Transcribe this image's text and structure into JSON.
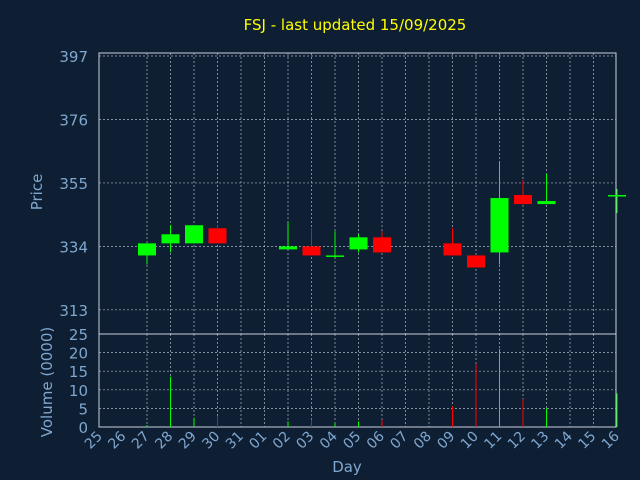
{
  "chart_data": [
    {
      "type": "candlestick",
      "title": "FSJ - last updated 15/09/2025",
      "ylabel": "Price",
      "ylim": [
        305,
        398
      ],
      "yticks": [
        313,
        334,
        355,
        376,
        397
      ],
      "grid": true,
      "days": [
        "25",
        "26",
        "27",
        "28",
        "29",
        "30",
        "31",
        "01",
        "02",
        "03",
        "04",
        "05",
        "06",
        "07",
        "08",
        "09",
        "10",
        "11",
        "12",
        "13",
        "14",
        "15",
        "16"
      ],
      "colors": {
        "up": "#00ff00",
        "down": "#ff0000",
        "title": "#ffff00",
        "axis_text": "#7fa7cf",
        "grid": "#aab4c4",
        "background": "#0f1f33"
      },
      "candles": [
        {
          "day": "26",
          "open": 331,
          "high": 335,
          "low": 328,
          "close": 335
        },
        {
          "day": "27",
          "open": 335,
          "high": 341,
          "low": 332,
          "close": 338
        },
        {
          "day": "28",
          "open": 335,
          "high": 341,
          "low": 335,
          "close": 341
        },
        {
          "day": "29",
          "open": 340,
          "high": 341,
          "low": 335,
          "close": 335
        },
        {
          "day": "01",
          "open": 333,
          "high": 342,
          "low": 333,
          "close": 334
        },
        {
          "day": "02",
          "open": 334,
          "high": 340,
          "low": 331,
          "close": 331
        },
        {
          "day": "03",
          "open": 331,
          "high": 339,
          "low": 330,
          "close": 331
        },
        {
          "day": "04",
          "open": 333,
          "high": 338,
          "low": 332,
          "close": 337
        },
        {
          "day": "05",
          "open": 337,
          "high": 339,
          "low": 332,
          "close": 332
        },
        {
          "day": "08",
          "open": 335,
          "high": 340,
          "low": 331,
          "close": 331
        },
        {
          "day": "09",
          "open": 331,
          "high": 331,
          "low": 327,
          "close": 327
        },
        {
          "day": "10",
          "open": 332,
          "high": 362,
          "low": 328,
          "close": 350
        },
        {
          "day": "11",
          "open": 351,
          "high": 356,
          "low": 348,
          "close": 348
        },
        {
          "day": "12",
          "open": 348,
          "high": 358,
          "low": 348,
          "close": 349
        },
        {
          "day": "15",
          "open": 351,
          "high": 353,
          "low": 345,
          "close": 351
        }
      ]
    },
    {
      "type": "bar",
      "ylabel": "Volume (0000)",
      "xlabel": "Day",
      "ylim": [
        0,
        25
      ],
      "yticks": [
        0,
        5,
        10,
        15,
        20,
        25
      ],
      "grid": true,
      "categories": [
        "25",
        "26",
        "27",
        "28",
        "29",
        "30",
        "31",
        "01",
        "02",
        "03",
        "04",
        "05",
        "06",
        "07",
        "08",
        "09",
        "10",
        "11",
        "12",
        "13",
        "14",
        "15",
        "16"
      ],
      "bars": [
        {
          "day": "26",
          "value": 0.5,
          "direction": "up"
        },
        {
          "day": "27",
          "value": 13.5,
          "direction": "up"
        },
        {
          "day": "28",
          "value": 2.5,
          "direction": "up"
        },
        {
          "day": "29",
          "value": 3,
          "direction": "down"
        },
        {
          "day": "01",
          "value": 1.5,
          "direction": "up"
        },
        {
          "day": "02",
          "value": 2,
          "direction": "down"
        },
        {
          "day": "03",
          "value": 1,
          "direction": "up"
        },
        {
          "day": "04",
          "value": 1.5,
          "direction": "up"
        },
        {
          "day": "05",
          "value": 2,
          "direction": "down"
        },
        {
          "day": "08",
          "value": 5.5,
          "direction": "down"
        },
        {
          "day": "09",
          "value": 17,
          "direction": "down"
        },
        {
          "day": "10",
          "value": 21,
          "direction": "up"
        },
        {
          "day": "11",
          "value": 7.5,
          "direction": "down"
        },
        {
          "day": "12",
          "value": 5,
          "direction": "up"
        },
        {
          "day": "15",
          "value": 9,
          "direction": "up"
        }
      ]
    }
  ]
}
